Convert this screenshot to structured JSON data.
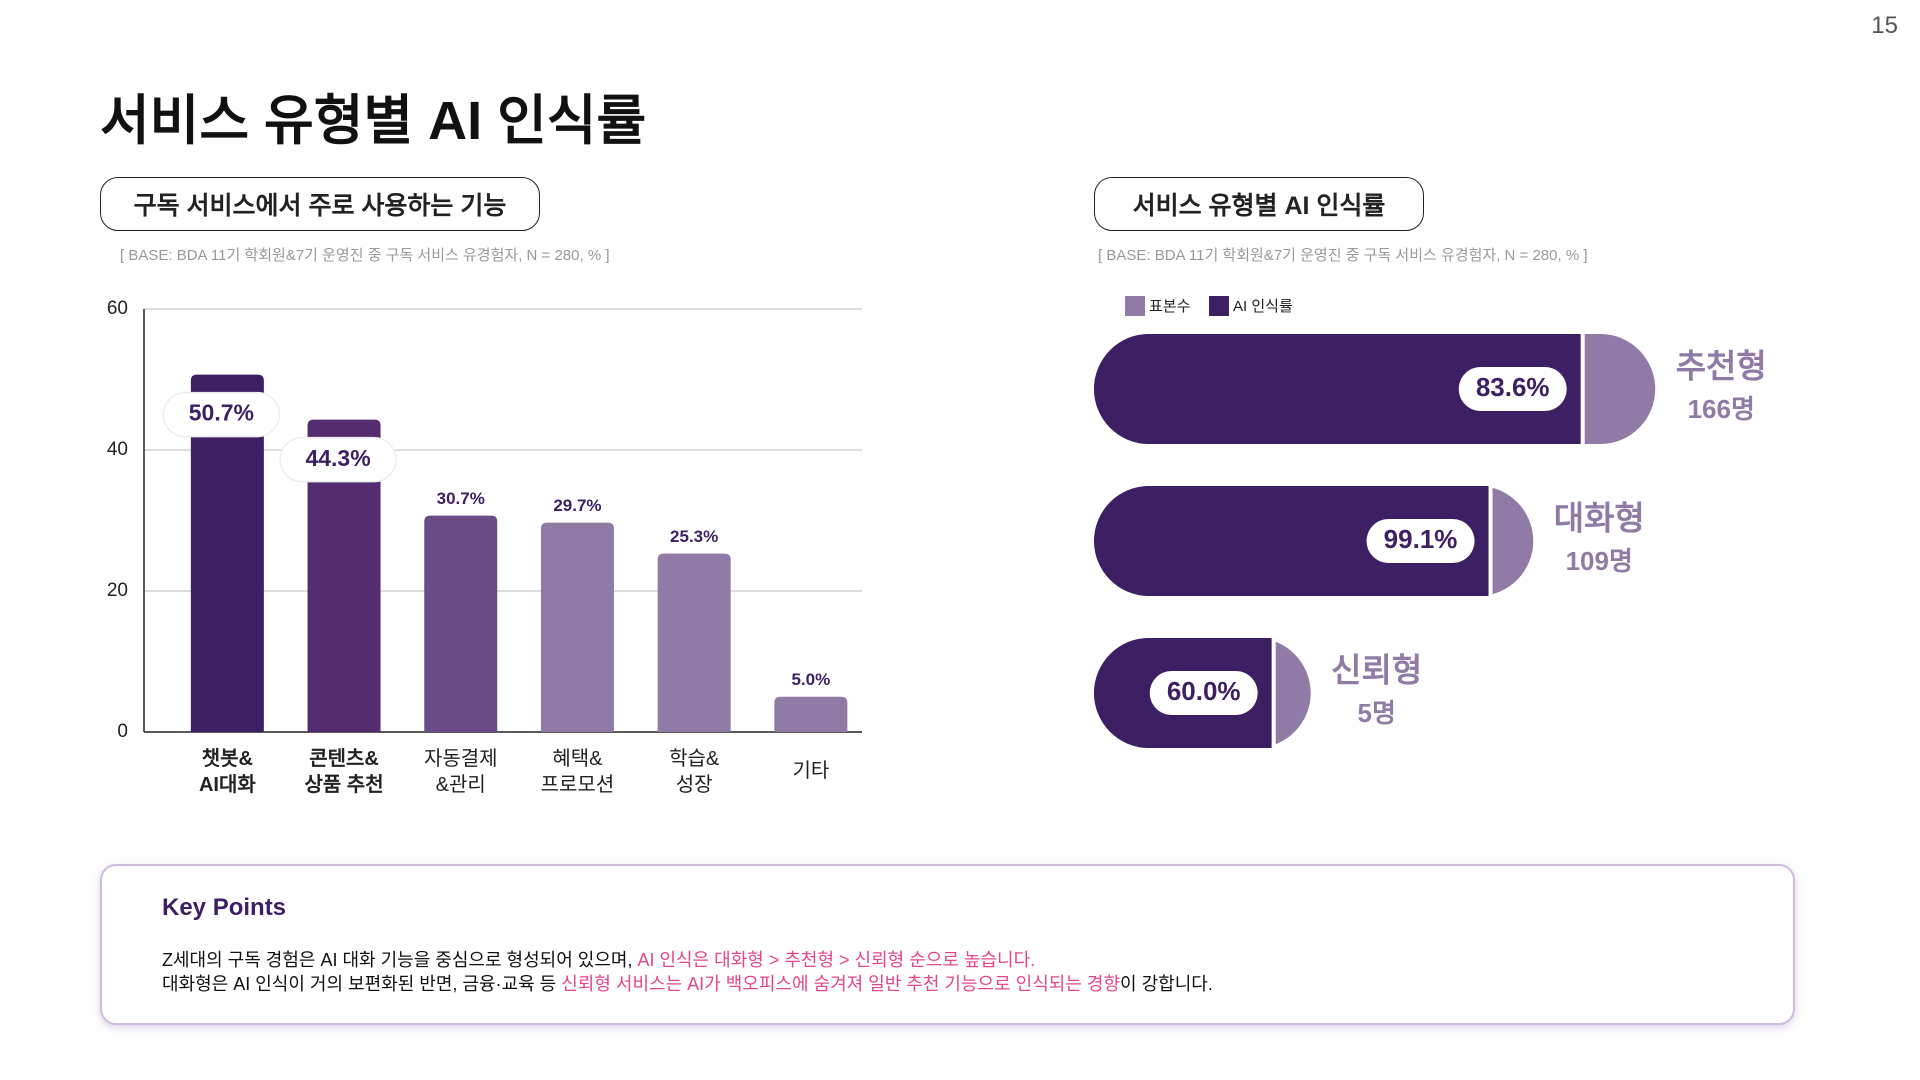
{
  "page_number": "15",
  "title": "서비스 유형별 AI 인식률",
  "chart_data": [
    {
      "type": "bar",
      "title": "구독 서비스에서 주로 사용하는 기능",
      "subtitle": "[ BASE: BDA 11기 학회원&7기 운영진 중 구독 서비스 유경험자, N = 280, % ]",
      "categories": [
        "챗봇&\nAI대화",
        "콘텐츠&\n상품 추천",
        "자동결제\n&관리",
        "혜택&\n프로모션",
        "학습&\n성장",
        "기타"
      ],
      "values": [
        50.7,
        44.3,
        30.7,
        29.7,
        25.3,
        5.0
      ],
      "value_labels": [
        "50.7%",
        "44.3%",
        "30.7%",
        "29.7%",
        "25.3%",
        "5.0%"
      ],
      "colors": [
        "#3d1f63",
        "#532d70",
        "#6a4a87",
        "#907ba6",
        "#907ba6",
        "#907ba6"
      ],
      "ylim": [
        0,
        60
      ],
      "yticks": [
        0,
        20,
        40,
        60
      ],
      "grid": true
    },
    {
      "type": "pill",
      "title": "서비스 유형별 AI 인식률",
      "subtitle": "[ BASE: BDA 11기 학회원&7기 운영진 중 구독 서비스 유경험자, N = 280, % ]",
      "categories": [
        "추천형",
        "대화형",
        "신뢰형"
      ],
      "series": [
        {
          "name": "표본수",
          "color": "#907ba6",
          "values": [
            166,
            109,
            5
          ],
          "value_labels": [
            "166명",
            "109명",
            "5명"
          ]
        },
        {
          "name": "AI 인식률",
          "color": "#3d1f63",
          "values": [
            83.6,
            99.1,
            60.0
          ],
          "value_labels": [
            "83.6%",
            "99.1%",
            "60.0%"
          ]
        }
      ]
    }
  ],
  "key_points": {
    "title": "Key Points",
    "lines": [
      [
        "Z세대의 구독 경험은 AI 대화 기능을 중심으로 형성되어 있으며, ",
        "AI 인식은 대화형 > 추천형 > 신뢰형 순으로 높습니다."
      ],
      [
        "대화형은 AI 인식이 거의 보편화된 반면, 금융·교육 등 ",
        "신뢰형 서비스는 AI가 백오피스에 숨겨져 일반 추천 기능으로 인식되는 경향",
        "이 강합니다."
      ]
    ]
  }
}
